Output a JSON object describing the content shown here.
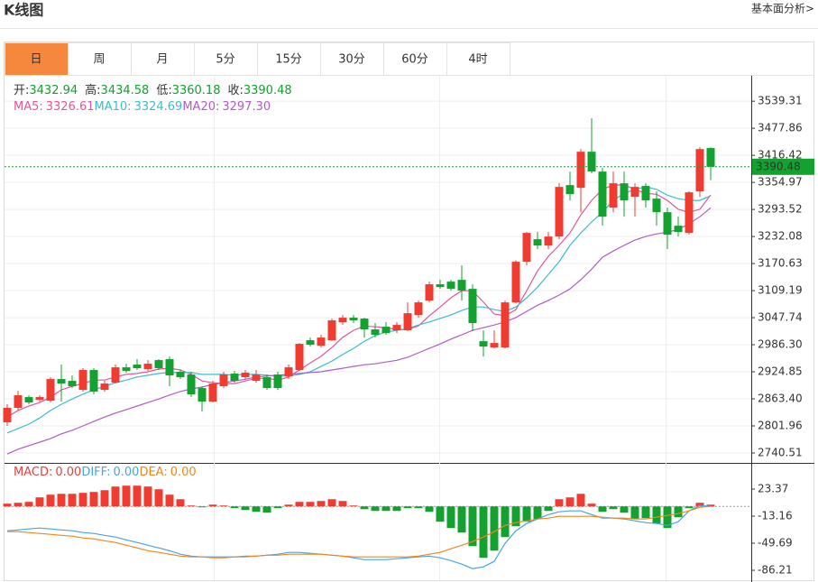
{
  "header": {
    "title": "K线图",
    "link": "基本面分析>"
  },
  "tabs": [
    "日",
    "周",
    "月",
    "5分",
    "15分",
    "30分",
    "60分",
    "4时"
  ],
  "active_tab": 0,
  "chart_data": [
    {
      "type": "candlestick",
      "up_color": "#f03b30",
      "down_color": "#13a12f",
      "ylim": [
        2720,
        3595
      ],
      "yticks": [
        3539.31,
        3477.86,
        3416.42,
        3354.97,
        3293.52,
        3232.08,
        3170.63,
        3109.19,
        3047.74,
        {
          "value": 2986.3,
          "label": "2986.30"
        },
        2924.85,
        {
          "value": 2863.4,
          "label": "2863.40"
        },
        2801.96,
        2740.51
      ],
      "grid": true,
      "ohlc_labels": [
        "开:",
        "高:",
        "低:",
        "收:"
      ],
      "candles": [
        [
          2810.1,
          2851.1,
          2801.9,
          2842.9
        ],
        [
          2842.9,
          2881.8,
          2836.7,
          2871.5
        ],
        [
          2867.4,
          2871.5,
          2851.1,
          2855.2
        ],
        [
          2861.3,
          2871.5,
          2857.2,
          2867.4
        ],
        [
          2859.3,
          2912.5,
          2855.2,
          2908.4
        ],
        [
          2908.4,
          2941.2,
          2857.2,
          2898.2
        ],
        [
          2904.3,
          2916.6,
          2887.9,
          2892.0
        ],
        [
          2883.8,
          2933.0,
          2879.7,
          2928.9
        ],
        [
          2928.9,
          2933.0,
          2873.6,
          2879.7
        ],
        [
          2883.8,
          2904.3,
          2879.7,
          2898.2
        ],
        [
          2900.2,
          2941.2,
          2898.2,
          2935.0
        ],
        [
          2935.0,
          2943.2,
          2922.8,
          2926.8
        ],
        [
          2941.2,
          2953.5,
          2928.9,
          2933.0
        ],
        [
          2930.9,
          2951.4,
          2926.8,
          2943.2
        ],
        [
          2951.4,
          2953.5,
          2928.9,
          2933.0
        ],
        [
          2953.5,
          2959.6,
          2892.0,
          2916.6
        ],
        [
          2924.8,
          2928.9,
          2908.4,
          2912.5
        ],
        [
          2918.7,
          2924.8,
          2867.4,
          2873.6
        ],
        [
          2887.9,
          2892.0,
          2834.7,
          2857.2
        ],
        [
          2857.2,
          2904.3,
          2855.2,
          2898.2
        ],
        [
          2892.0,
          2924.8,
          2887.9,
          2918.7
        ],
        [
          2920.7,
          2926.8,
          2900.2,
          2904.3
        ],
        [
          2912.5,
          2928.9,
          2908.4,
          2922.8
        ],
        [
          2904.3,
          2928.9,
          2900.2,
          2918.7
        ],
        [
          2912.5,
          2918.7,
          2883.8,
          2887.9
        ],
        [
          2918.7,
          2924.8,
          2883.8,
          2887.9
        ],
        [
          2914.6,
          2941.2,
          2908.4,
          2935.0
        ],
        [
          2928.9,
          2990.3,
          2926.8,
          2988.3
        ],
        [
          2996.5,
          3002.6,
          2982.2,
          2986.2
        ],
        [
          2984.2,
          3008.8,
          2980.1,
          3002.6
        ],
        [
          2996.5,
          3045.7,
          2994.4,
          3041.6
        ],
        [
          3037.5,
          3053.8,
          3031.3,
          3047.7
        ],
        [
          3047.7,
          3053.8,
          3035.4,
          3041.6
        ],
        [
          3045.7,
          3047.7,
          3002.6,
          3021.1
        ],
        [
          3021.1,
          3035.4,
          3002.6,
          3008.8
        ],
        [
          3027.2,
          3037.5,
          3008.8,
          3012.9
        ],
        [
          3019.0,
          3037.5,
          3012.9,
          3031.3
        ],
        [
          3019.0,
          3082.5,
          3017.0,
          3057.9
        ],
        [
          3053.8,
          3086.6,
          3047.7,
          3082.5
        ],
        [
          3086.6,
          3129.6,
          3082.5,
          3123.5
        ],
        [
          3123.5,
          3133.7,
          3113.2,
          3117.3
        ],
        [
          3129.6,
          3133.7,
          3109.1,
          3113.2
        ],
        [
          3133.7,
          3166.5,
          3086.6,
          3109.1
        ],
        [
          3113.2,
          3123.5,
          3017.0,
          3035.4
        ],
        [
          2994.4,
          3019.0,
          2959.6,
          2982.2
        ],
        [
          2980.1,
          3019.0,
          2978.1,
          2990.3
        ],
        [
          2980.1,
          3086.6,
          2978.1,
          3082.5
        ],
        [
          3082.5,
          3178.0,
          3080.0,
          3174.7
        ],
        [
          3174.7,
          3242.3,
          3166.5,
          3240.2
        ],
        [
          3225.9,
          3242.3,
          3203.4,
          3211.6
        ],
        [
          3211.6,
          3242.3,
          3203.4,
          3232.0
        ],
        [
          3232.0,
          3352.9,
          3225.9,
          3344.7
        ],
        [
          3348.8,
          3379.5,
          3314.0,
          3328.3
        ],
        [
          3342.7,
          3430.7,
          3287.3,
          3424.6
        ],
        [
          3424.6,
          3500.4,
          3375.4,
          3379.5
        ],
        [
          3379.5,
          3387.7,
          3256.6,
          3277.1
        ],
        [
          3297.6,
          3379.5,
          3287.3,
          3352.9
        ],
        [
          3352.9,
          3379.5,
          3277.1,
          3314.0
        ],
        [
          3322.2,
          3352.9,
          3277.1,
          3344.7
        ],
        [
          3346.8,
          3352.9,
          3297.6,
          3314.0
        ],
        [
          3318.1,
          3334.5,
          3256.6,
          3287.3
        ],
        [
          3287.3,
          3297.6,
          3203.4,
          3236.1
        ],
        [
          3256.6,
          3277.1,
          3232.0,
          3242.3
        ],
        [
          3240.2,
          3334.5,
          3236.1,
          3332.4
        ],
        [
          3334.5,
          3434.8,
          3322.2,
          3430.7
        ],
        [
          3432.94,
          3434.58,
          3360.18,
          3390.48
        ]
      ],
      "series": [
        {
          "name": "MA5:",
          "color": "#e5559b",
          "current": 3326.61,
          "values": [
            2822,
            2837,
            2847,
            2855,
            2867,
            2884,
            2892,
            2898,
            2906,
            2906,
            2913,
            2919,
            2921,
            2925,
            2931,
            2933,
            2929,
            2919,
            2904,
            2900,
            2898,
            2898,
            2904,
            2910,
            2910,
            2906,
            2913,
            2929,
            2945,
            2960,
            2980,
            3003,
            3019,
            3029,
            3027,
            3025,
            3021,
            3021,
            3029,
            3052,
            3072,
            3093,
            3109,
            3109,
            3083,
            3056,
            3052,
            3066,
            3109,
            3154,
            3187,
            3212,
            3240,
            3281,
            3314,
            3339,
            3349,
            3349,
            3339,
            3330,
            3328,
            3314,
            3294,
            3287,
            3294,
            3326.61
          ]
        },
        {
          "name": "MA10:",
          "color": "#3dbbd5",
          "current": 3324.69,
          "values": [
            2786,
            2796,
            2806,
            2820,
            2837,
            2851,
            2863,
            2874,
            2884,
            2892,
            2900,
            2906,
            2913,
            2917,
            2921,
            2923,
            2923,
            2923,
            2919,
            2919,
            2919,
            2917,
            2919,
            2919,
            2917,
            2915,
            2915,
            2919,
            2925,
            2937,
            2949,
            2964,
            2978,
            2994,
            3007,
            3015,
            3019,
            3023,
            3031,
            3038,
            3046,
            3054,
            3064,
            3072,
            3072,
            3066,
            3062,
            3072,
            3093,
            3117,
            3146,
            3175,
            3212,
            3240,
            3265,
            3287,
            3314,
            3330,
            3339,
            3345,
            3339,
            3326,
            3318,
            3314,
            3314,
            3324.69
          ]
        },
        {
          "name": "MA20:",
          "color": "#b05cc8",
          "current": {
            "value": 3297.3,
            "label": "3297.30"
          },
          "values": [
            2738,
            2749,
            2757,
            2765,
            2773,
            2784,
            2792,
            2802,
            2812,
            2822,
            2831,
            2839,
            2847,
            2855,
            2863,
            2872,
            2880,
            2886,
            2890,
            2896,
            2900,
            2904,
            2908,
            2913,
            2915,
            2917,
            2919,
            2921,
            2923,
            2925,
            2929,
            2933,
            2937,
            2941,
            2943,
            2947,
            2951,
            2958,
            2968,
            2978,
            2988,
            2999,
            3009,
            3019,
            3025,
            3031,
            3038,
            3048,
            3062,
            3076,
            3087,
            3099,
            3113,
            3134,
            3158,
            3185,
            3199,
            3212,
            3224,
            3232,
            3238,
            3242,
            3248,
            3261,
            3277,
            3297.3
          ]
        }
      ]
    },
    {
      "type": "macd",
      "up_color": "#f03b30",
      "down_color": "#13a12f",
      "ylim": [
        -102,
        57.5
      ],
      "yticks": [
        23.37,
        -13.16,
        -49.69,
        -86.21
      ],
      "histogram": {
        "name": "MACD:",
        "color": "#e8413c",
        "current": {
          "value": 0,
          "label": "0.00"
        },
        "values": [
          3.7,
          4.9,
          6.1,
          12.2,
          15.8,
          17.0,
          17.0,
          18.3,
          19.5,
          21.9,
          26.8,
          28.0,
          28.0,
          26.8,
          23.1,
          15.8,
          9.7,
          1.2,
          -1.2,
          2.4,
          1.2,
          -2.4,
          -4.9,
          -7.3,
          -8.5,
          -2.4,
          2.4,
          6.1,
          6.1,
          7.3,
          9.7,
          7.3,
          1.2,
          -3.7,
          -6.1,
          -6.1,
          -6.1,
          -2.4,
          -2.4,
          -7.3,
          -20.7,
          -29.2,
          -35.3,
          -53.6,
          -69.4,
          -59.7,
          -41.4,
          -26.8,
          -20.7,
          -17.0,
          -6.1,
          9.7,
          12.2,
          17.0,
          3.7,
          -7.3,
          -3.7,
          -8.5,
          -17.0,
          -15.8,
          -23.1,
          -29.2,
          -14.6,
          -2.4,
          4.9,
          2.4
        ]
      },
      "series": [
        {
          "name": "DIFF:",
          "color": "#4aa3e6",
          "current": {
            "value": 0,
            "label": "0.00"
          },
          "values": [
            -32.9,
            -31.7,
            -30.4,
            -29.2,
            -30.4,
            -31.7,
            -32.9,
            -35.3,
            -36.5,
            -39.0,
            -41.4,
            -45.1,
            -48.7,
            -52.4,
            -56.0,
            -59.7,
            -64.5,
            -67.0,
            -68.2,
            -68.2,
            -68.2,
            -68.2,
            -67.0,
            -67.0,
            -65.8,
            -64.5,
            -62.1,
            -62.1,
            -63.3,
            -64.5,
            -65.8,
            -67.0,
            -69.4,
            -71.8,
            -71.8,
            -71.8,
            -70.6,
            -69.4,
            -68.2,
            -67.0,
            -69.4,
            -73.1,
            -77.9,
            -84.0,
            -81.6,
            -74.3,
            -49.9,
            -32.9,
            -23.1,
            -17.0,
            -11.0,
            -7.3,
            -6.1,
            -6.1,
            -11.0,
            -15.8,
            -15.8,
            -17.0,
            -19.5,
            -21.9,
            -23.1,
            -25.6,
            -20.7,
            -6.1,
            1.2,
            0
          ]
        },
        {
          "name": "DEA:",
          "color": "#f0861d",
          "current": {
            "value": 0,
            "label": "0.00"
          },
          "values": [
            -34.1,
            -34.1,
            -35.3,
            -36.5,
            -37.7,
            -39.0,
            -40.2,
            -42.6,
            -43.8,
            -46.3,
            -48.7,
            -52.4,
            -56.0,
            -59.7,
            -62.1,
            -64.5,
            -67.0,
            -68.2,
            -68.2,
            -69.4,
            -69.4,
            -68.2,
            -68.2,
            -67.0,
            -65.8,
            -65.8,
            -64.5,
            -64.5,
            -64.5,
            -64.5,
            -65.8,
            -67.0,
            -68.2,
            -68.2,
            -68.2,
            -68.2,
            -68.2,
            -68.2,
            -67.0,
            -64.5,
            -62.1,
            -57.2,
            -52.4,
            -47.5,
            -41.4,
            -34.1,
            -25.6,
            -21.9,
            -19.5,
            -17.0,
            -15.8,
            -13.4,
            -13.4,
            -13.4,
            -13.4,
            -14.6,
            -15.8,
            -15.8,
            -17.0,
            -17.0,
            -14.6,
            -12.2,
            -9.7,
            -6.1,
            -1.2,
            0
          ]
        }
      ]
    }
  ]
}
